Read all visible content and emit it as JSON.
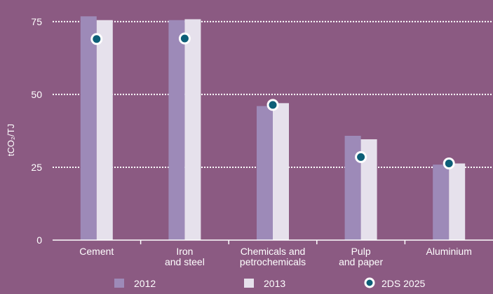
{
  "chart_data": {
    "type": "bar",
    "title": "",
    "xlabel": "",
    "ylabel": "tCO₂/TJ",
    "ylim": [
      0,
      80
    ],
    "yticks": [
      0,
      25,
      50,
      75
    ],
    "grid": "dotted horizontal at ticks",
    "legend_position": "bottom",
    "categories": [
      [
        "Cement"
      ],
      [
        "Iron",
        "and steel"
      ],
      [
        "Chemicals and",
        "petrochemicals"
      ],
      [
        "Pulp",
        "and paper"
      ],
      [
        "Aluminium"
      ]
    ],
    "series": [
      {
        "name": "2012",
        "type": "bar",
        "color": "#9d8ab8",
        "values": [
          76.8,
          75.5,
          46.0,
          35.8,
          25.9
        ]
      },
      {
        "name": "2013",
        "type": "bar",
        "color": "#e6e1ec",
        "values": [
          75.5,
          75.8,
          47.0,
          34.6,
          26.3
        ]
      },
      {
        "name": "2DS 2025",
        "type": "marker",
        "color": "#0d5f78",
        "values": [
          69.0,
          69.2,
          46.4,
          28.5,
          26.3
        ]
      }
    ]
  },
  "colors": {
    "background": "#8b5a82",
    "marker_outline": "#ffffff",
    "grid": "#ffffff",
    "axis": "#ffffff"
  }
}
